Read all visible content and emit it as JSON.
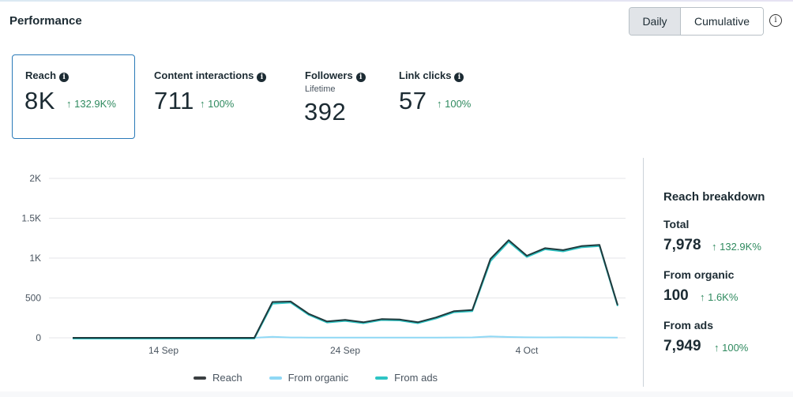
{
  "header": {
    "title": "Performance",
    "toggle": {
      "options": [
        "Daily",
        "Cumulative"
      ],
      "selected": "Daily"
    },
    "info_icon": "info-circle-icon"
  },
  "metrics": [
    {
      "label": "Reach",
      "value": "8K",
      "change": "↑ 132.9K%",
      "selected": true,
      "icon": "info-filled-icon"
    },
    {
      "label": "Content interactions",
      "value": "711",
      "change": "↑ 100%",
      "selected": false,
      "icon": "info-filled-icon"
    },
    {
      "label": "Followers",
      "sublabel": "Lifetime",
      "value": "392",
      "selected": false,
      "icon": "info-filled-icon"
    },
    {
      "label": "Link clicks",
      "value": "57",
      "change": "↑ 100%",
      "selected": false,
      "icon": "info-filled-icon"
    }
  ],
  "breakdown": {
    "title": "Reach breakdown",
    "items": [
      {
        "label": "Total",
        "value": "7,978",
        "change": "↑ 132.9K%"
      },
      {
        "label": "From organic",
        "value": "100",
        "change": "↑ 1.6K%"
      },
      {
        "label": "From ads",
        "value": "7,949",
        "change": "↑ 100%"
      }
    ]
  },
  "colors": {
    "reach": "#1f3a3d",
    "organic": "#8fd8f5",
    "ads": "#2ec4c4",
    "positive": "#2f8a5f",
    "selected_border": "#2a7ab8"
  },
  "chart_data": {
    "type": "line",
    "title": "",
    "xlabel": "",
    "ylabel": "",
    "ylim": [
      0,
      2000
    ],
    "yticks": [
      0,
      500,
      1000,
      1500,
      2000
    ],
    "ytick_labels": [
      "0",
      "500",
      "1K",
      "1.5K",
      "2K"
    ],
    "x": [
      "9 Sep",
      "10 Sep",
      "11 Sep",
      "12 Sep",
      "13 Sep",
      "14 Sep",
      "15 Sep",
      "16 Sep",
      "17 Sep",
      "18 Sep",
      "19 Sep",
      "20 Sep",
      "21 Sep",
      "22 Sep",
      "23 Sep",
      "24 Sep",
      "25 Sep",
      "26 Sep",
      "27 Sep",
      "28 Sep",
      "29 Sep",
      "30 Sep",
      "1 Oct",
      "2 Oct",
      "3 Oct",
      "4 Oct",
      "5 Oct",
      "6 Oct",
      "7 Oct",
      "8 Oct",
      "9 Oct"
    ],
    "xtick_labels": [
      {
        "index": 5,
        "label": "14 Sep"
      },
      {
        "index": 15,
        "label": "24 Sep"
      },
      {
        "index": 25,
        "label": "4 Oct"
      }
    ],
    "grid": true,
    "legend": "bottom-center",
    "series": [
      {
        "name": "Reach",
        "values": [
          0,
          0,
          0,
          0,
          0,
          0,
          0,
          0,
          0,
          0,
          0,
          450,
          455,
          300,
          205,
          225,
          195,
          235,
          230,
          195,
          255,
          335,
          350,
          990,
          1225,
          1030,
          1125,
          1100,
          1150,
          1165,
          410
        ]
      },
      {
        "name": "From organic",
        "values": [
          0,
          0,
          0,
          0,
          0,
          0,
          0,
          0,
          0,
          0,
          0,
          12,
          4,
          3,
          3,
          3,
          2,
          2,
          2,
          2,
          3,
          4,
          5,
          18,
          10,
          6,
          5,
          6,
          5,
          4,
          2
        ]
      },
      {
        "name": "From ads",
        "values": [
          0,
          0,
          0,
          0,
          0,
          0,
          0,
          0,
          0,
          0,
          0,
          438,
          451,
          297,
          202,
          222,
          193,
          233,
          228,
          193,
          252,
          331,
          345,
          972,
          1215,
          1024,
          1120,
          1094,
          1145,
          1161,
          408
        ]
      }
    ]
  }
}
